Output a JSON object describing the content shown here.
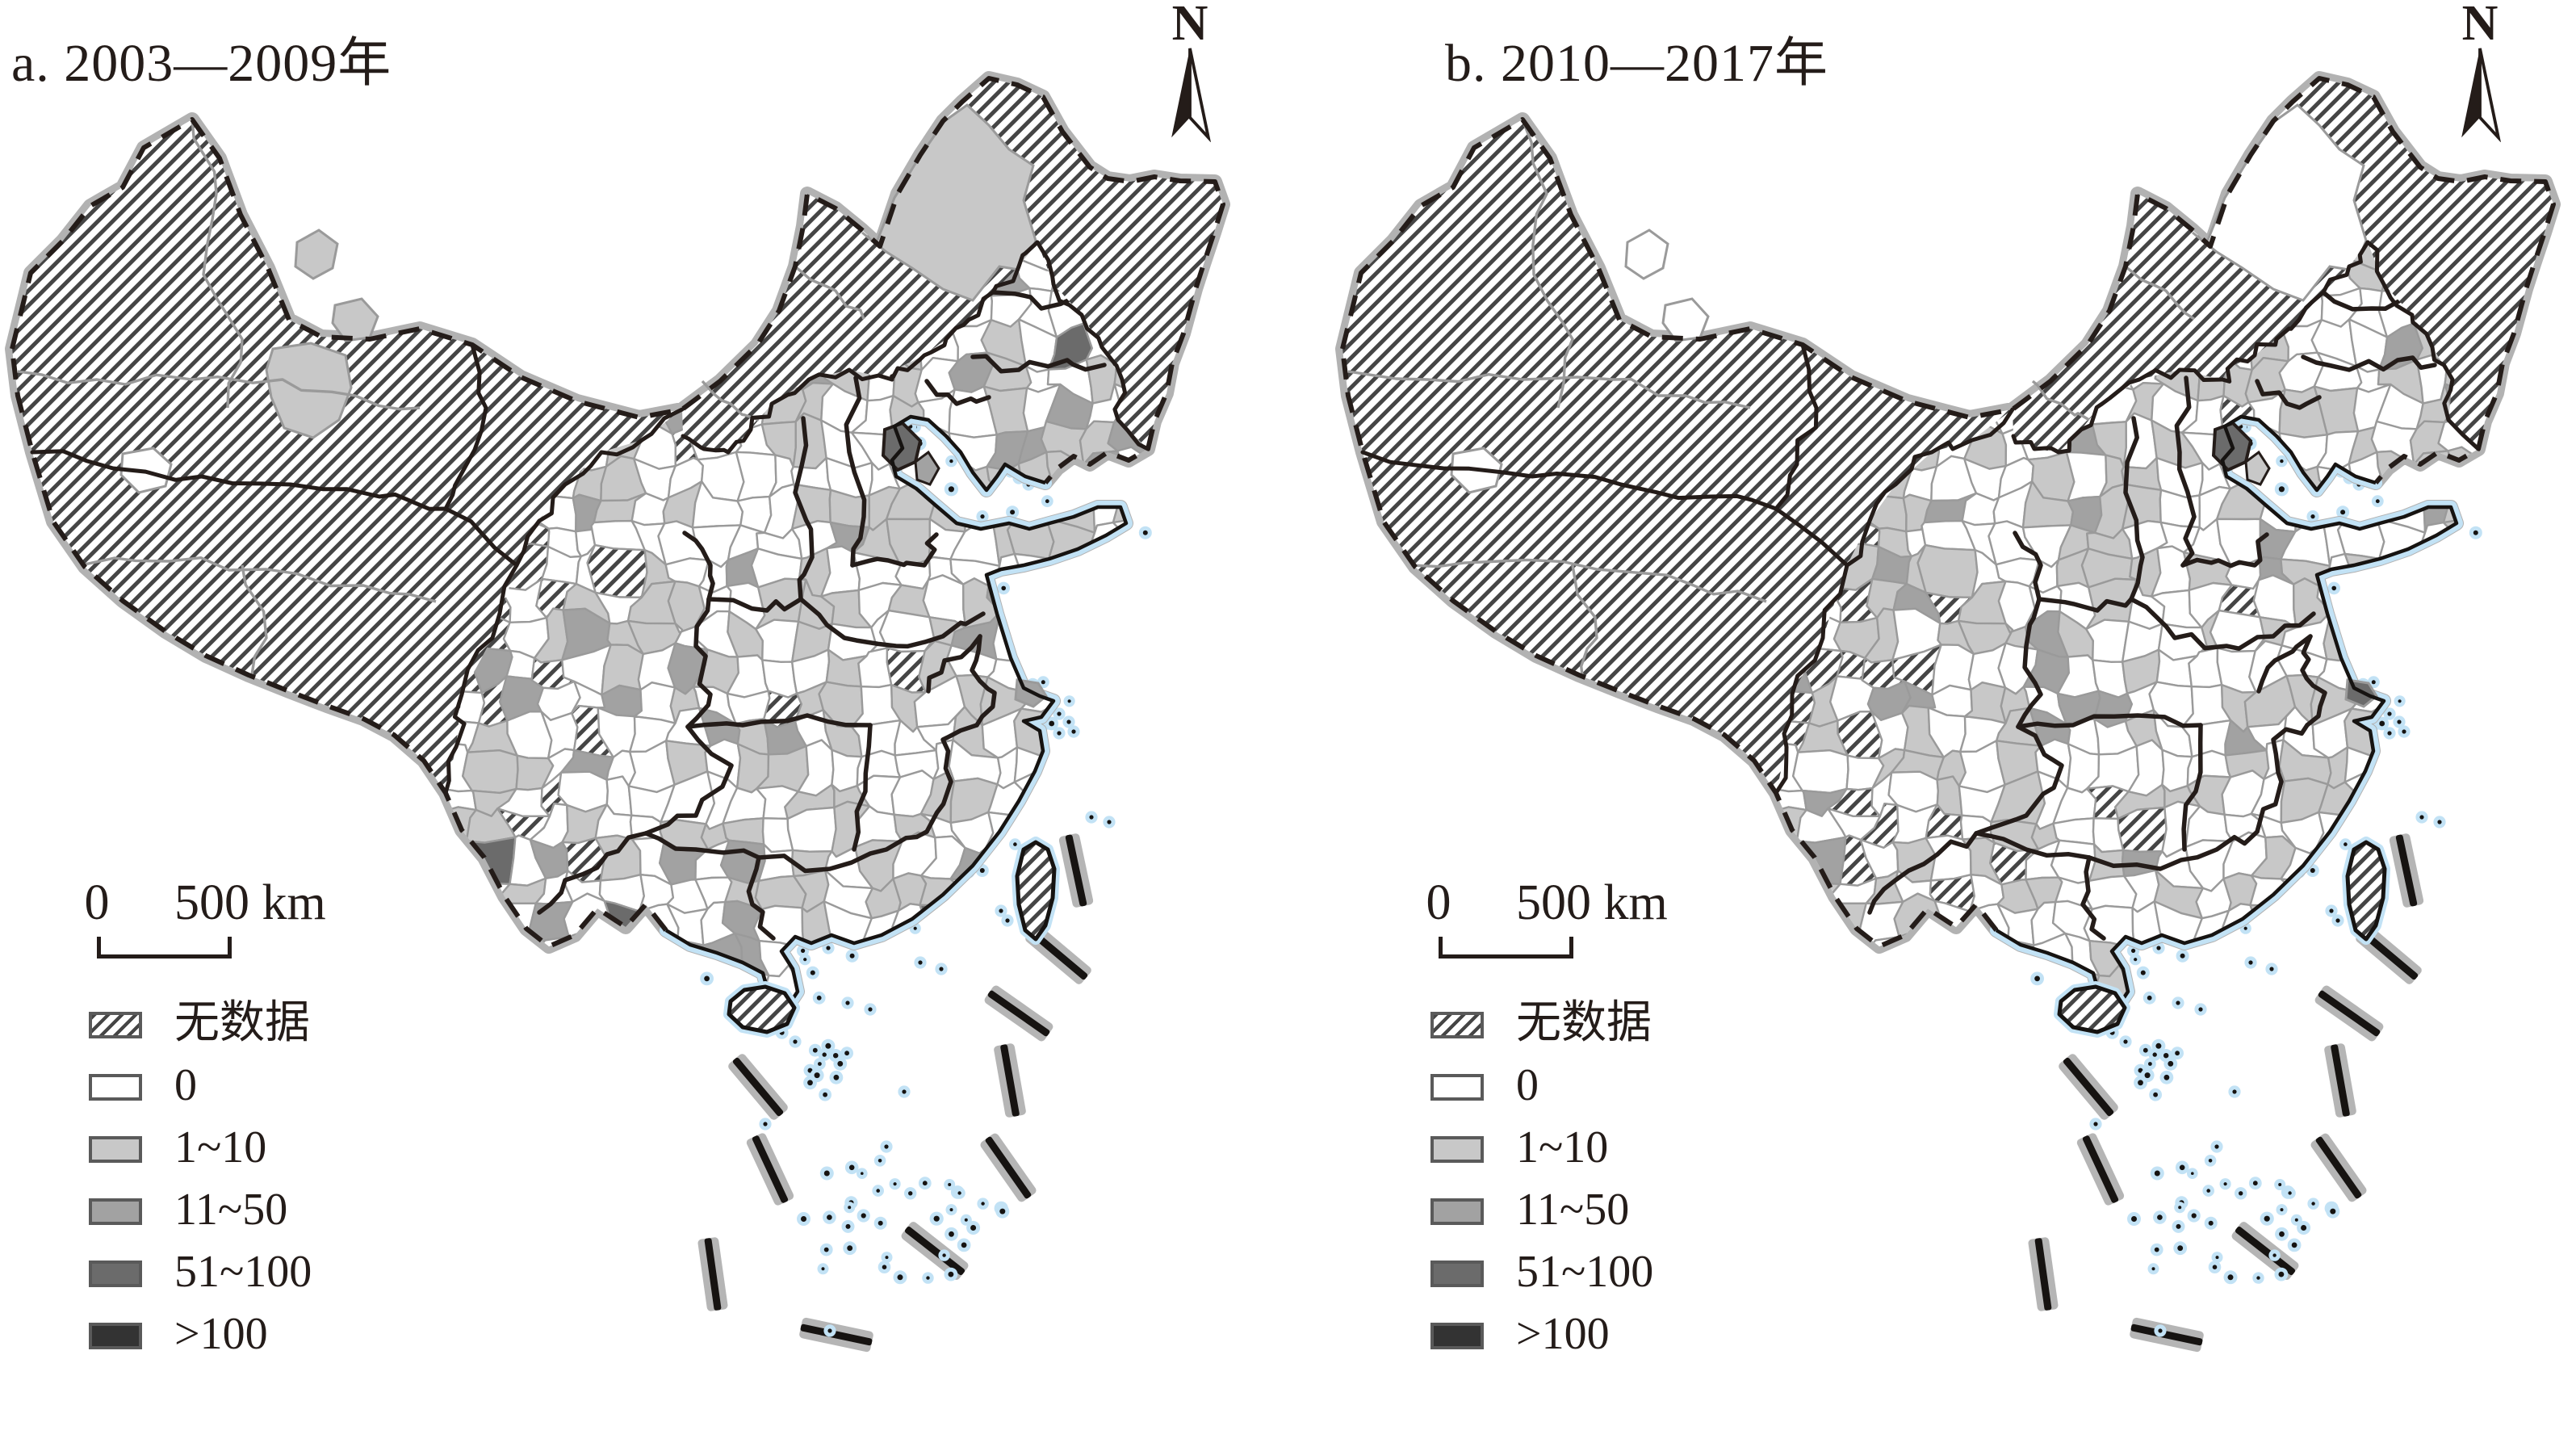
{
  "region": "China",
  "panels": [
    {
      "id": "a",
      "title": "a. 2003—2009年"
    },
    {
      "id": "b",
      "title": "b. 2010—2017年"
    }
  ],
  "north_arrow_label": "N",
  "scale_bar": {
    "zero_label": "0",
    "distance_label": "500 km"
  },
  "legend": {
    "items": [
      {
        "label": "无数据",
        "swatch": "hatched"
      },
      {
        "label": "0",
        "swatch": "#ffffff"
      },
      {
        "label": "1~10",
        "swatch": "#c8c8c8"
      },
      {
        "label": "11~50",
        "swatch": "#a2a2a2"
      },
      {
        "label": "51~100",
        "swatch": "#6b6b6b"
      },
      {
        "label": ">100",
        "swatch": "#333333"
      }
    ]
  },
  "map_colors": {
    "land_fill": "#ffffff",
    "no_data_stripe": "#454545",
    "fill_1_10": "#c8c8c8",
    "fill_11_50": "#a2a2a2",
    "fill_51_100": "#6b6b6b",
    "fill_gt_100": "#333333",
    "boundary_black": "#241c19",
    "boundary_casing": "#b2b2b2",
    "prefecture_line": "#9a9a9a",
    "coast_halo": "#c2e2f5"
  }
}
